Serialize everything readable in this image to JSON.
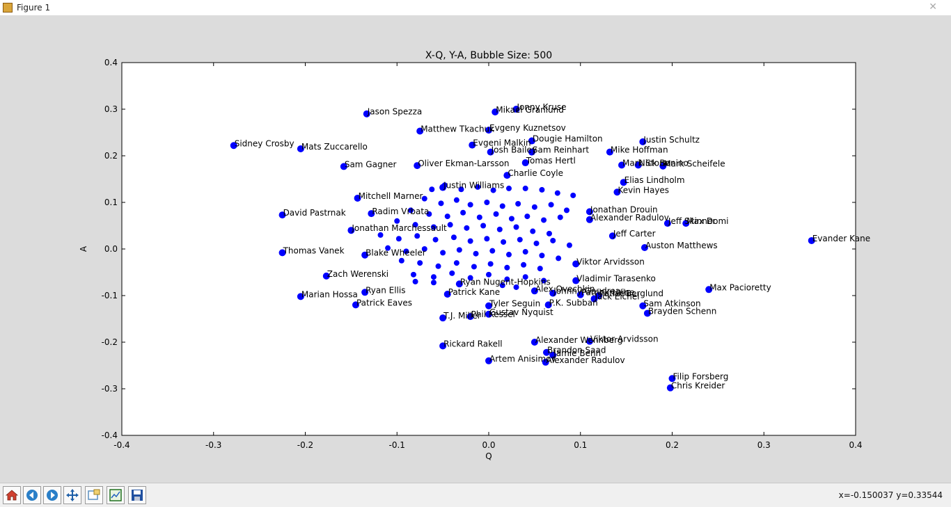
{
  "window": {
    "title": "Figure 1"
  },
  "chart_data": {
    "type": "scatter",
    "title": "X-Q, Y-A, Bubble Size: 500",
    "xlabel": "Q",
    "ylabel": "A",
    "xlim": [
      -0.4,
      0.4
    ],
    "ylim": [
      -0.4,
      0.4
    ],
    "xticks": [
      "-0.4",
      "-0.3",
      "-0.2",
      "-0.1",
      "0.0",
      "0.1",
      "0.2",
      "0.3",
      "0.4"
    ],
    "yticks": [
      "0.4",
      "0.3",
      "0.2",
      "0.1",
      "0.0",
      "-0.1",
      "-0.2",
      "-0.3",
      "-0.4"
    ],
    "marker_color": "#0000ff",
    "labeled_points": [
      {
        "name": "Jason Spezza",
        "x": -0.133,
        "y": 0.29
      },
      {
        "name": "Mikael Granlund",
        "x": 0.007,
        "y": 0.294
      },
      {
        "name": "Jonny Kruse",
        "x": 0.03,
        "y": 0.3
      },
      {
        "name": "Matthew Tkachuk",
        "x": -0.075,
        "y": 0.253
      },
      {
        "name": "Evgeny Kuznetsov",
        "x": 0.0,
        "y": 0.255
      },
      {
        "name": "Sidney Crosby",
        "x": -0.278,
        "y": 0.222
      },
      {
        "name": "Mats Zuccarello",
        "x": -0.205,
        "y": 0.215
      },
      {
        "name": "Dougie Hamilton",
        "x": 0.047,
        "y": 0.232
      },
      {
        "name": "Justin Schultz",
        "x": 0.168,
        "y": 0.23
      },
      {
        "name": "Evgeni Malkin",
        "x": -0.018,
        "y": 0.223
      },
      {
        "name": "Josh Bailey",
        "x": 0.002,
        "y": 0.208
      },
      {
        "name": "Sam Reinhart",
        "x": 0.047,
        "y": 0.208
      },
      {
        "name": "Mike Hoffman",
        "x": 0.132,
        "y": 0.208
      },
      {
        "name": "Sam Gagner",
        "x": -0.158,
        "y": 0.177
      },
      {
        "name": "Oliver Ekman-Larsson",
        "x": -0.078,
        "y": 0.179
      },
      {
        "name": "Mark Stone",
        "x": 0.145,
        "y": 0.18
      },
      {
        "name": "Nick Bonino",
        "x": 0.163,
        "y": 0.18
      },
      {
        "name": "Mark Scheifele",
        "x": 0.19,
        "y": 0.178
      },
      {
        "name": "Tomas Hertl",
        "x": 0.04,
        "y": 0.185
      },
      {
        "name": "Charlie Coyle",
        "x": 0.02,
        "y": 0.158
      },
      {
        "name": "Elias Lindholm",
        "x": 0.147,
        "y": 0.143
      },
      {
        "name": "Justin Williams",
        "x": -0.05,
        "y": 0.132
      },
      {
        "name": "Kevin Hayes",
        "x": 0.14,
        "y": 0.122
      },
      {
        "name": "Mitchell Marner",
        "x": -0.143,
        "y": 0.109
      },
      {
        "name": "David Pastrnak",
        "x": -0.225,
        "y": 0.073
      },
      {
        "name": "Radim Vrbata",
        "x": -0.128,
        "y": 0.076
      },
      {
        "name": "Jonathan Drouin",
        "x": 0.11,
        "y": 0.08
      },
      {
        "name": "Alexander Radulov",
        "x": 0.11,
        "y": 0.063
      },
      {
        "name": "Max Domi",
        "x": 0.215,
        "y": 0.055
      },
      {
        "name": "Jeff Skinner",
        "x": 0.195,
        "y": 0.055
      },
      {
        "name": "Jonathan Marchessault",
        "x": -0.15,
        "y": 0.04
      },
      {
        "name": "Jeff Carter",
        "x": 0.135,
        "y": 0.028
      },
      {
        "name": "Evander Kane",
        "x": 0.352,
        "y": 0.018
      },
      {
        "name": "Auston Matthews",
        "x": 0.17,
        "y": 0.003
      },
      {
        "name": "Thomas Vanek",
        "x": -0.225,
        "y": -0.008
      },
      {
        "name": "Blake Wheeler",
        "x": -0.135,
        "y": -0.013
      },
      {
        "name": "Zach Werenski",
        "x": -0.177,
        "y": -0.058
      },
      {
        "name": "Viktor Arvidsson",
        "x": 0.095,
        "y": -0.032
      },
      {
        "name": "Vladimir Tarasenko",
        "x": 0.095,
        "y": -0.068
      },
      {
        "name": "Max Pacioretty",
        "x": 0.24,
        "y": -0.087
      },
      {
        "name": "Ryan Nugent-Hopkins",
        "x": -0.032,
        "y": -0.075
      },
      {
        "name": "Marian Hossa",
        "x": -0.205,
        "y": -0.102
      },
      {
        "name": "Patrick Kane",
        "x": -0.045,
        "y": -0.097
      },
      {
        "name": "Alex Ovechkin",
        "x": 0.05,
        "y": -0.09
      },
      {
        "name": "Johnny Gaudreau",
        "x": 0.07,
        "y": -0.095
      },
      {
        "name": "Patrick Laine",
        "x": 0.1,
        "y": -0.098
      },
      {
        "name": "Patrik Berglund",
        "x": 0.12,
        "y": -0.1
      },
      {
        "name": "Ryan Ellis",
        "x": -0.135,
        "y": -0.093
      },
      {
        "name": "Jack Eichel",
        "x": 0.115,
        "y": -0.107
      },
      {
        "name": "P.K. Subban",
        "x": 0.065,
        "y": -0.12
      },
      {
        "name": "Sam Atkinson",
        "x": 0.168,
        "y": -0.122
      },
      {
        "name": "Tyler Seguin",
        "x": 0.0,
        "y": -0.122
      },
      {
        "name": "Patrick Eaves",
        "x": -0.145,
        "y": -0.12
      },
      {
        "name": "Brayden Schenn",
        "x": 0.173,
        "y": -0.138
      },
      {
        "name": "Phil Kessel",
        "x": -0.02,
        "y": -0.145
      },
      {
        "name": "T.J. Miller",
        "x": -0.05,
        "y": -0.148
      },
      {
        "name": "Gustav Nyquist",
        "x": 0.0,
        "y": -0.14
      },
      {
        "name": "Alexander Wennberg",
        "x": 0.05,
        "y": -0.2
      },
      {
        "name": "Viktor Arvidsson",
        "x": 0.11,
        "y": -0.198
      },
      {
        "name": "Rickard Rakell",
        "x": -0.05,
        "y": -0.208
      },
      {
        "name": "Brandon Saad",
        "x": 0.063,
        "y": -0.222
      },
      {
        "name": "Jamie Benn",
        "x": 0.07,
        "y": -0.228
      },
      {
        "name": "Artem Anisimov",
        "x": 0.0,
        "y": -0.24
      },
      {
        "name": "Alexander Radulov",
        "x": 0.062,
        "y": -0.243
      },
      {
        "name": "Filip Forsberg",
        "x": 0.2,
        "y": -0.278
      },
      {
        "name": "Chris Kreider",
        "x": 0.198,
        "y": -0.298
      }
    ],
    "cluster_points": [
      {
        "x": -0.062,
        "y": 0.128
      },
      {
        "x": -0.048,
        "y": 0.137
      },
      {
        "x": -0.03,
        "y": 0.128
      },
      {
        "x": -0.012,
        "y": 0.133
      },
      {
        "x": 0.005,
        "y": 0.126
      },
      {
        "x": 0.022,
        "y": 0.13
      },
      {
        "x": 0.04,
        "y": 0.13
      },
      {
        "x": 0.058,
        "y": 0.127
      },
      {
        "x": 0.075,
        "y": 0.12
      },
      {
        "x": 0.092,
        "y": 0.115
      },
      {
        "x": -0.07,
        "y": 0.108
      },
      {
        "x": -0.052,
        "y": 0.098
      },
      {
        "x": -0.035,
        "y": 0.105
      },
      {
        "x": -0.02,
        "y": 0.095
      },
      {
        "x": -0.002,
        "y": 0.1
      },
      {
        "x": 0.015,
        "y": 0.092
      },
      {
        "x": 0.032,
        "y": 0.097
      },
      {
        "x": 0.05,
        "y": 0.09
      },
      {
        "x": 0.068,
        "y": 0.095
      },
      {
        "x": 0.085,
        "y": 0.083
      },
      {
        "x": -0.085,
        "y": 0.083
      },
      {
        "x": -0.065,
        "y": 0.075
      },
      {
        "x": -0.045,
        "y": 0.07
      },
      {
        "x": -0.028,
        "y": 0.078
      },
      {
        "x": -0.01,
        "y": 0.068
      },
      {
        "x": 0.008,
        "y": 0.075
      },
      {
        "x": 0.025,
        "y": 0.065
      },
      {
        "x": 0.042,
        "y": 0.07
      },
      {
        "x": 0.06,
        "y": 0.062
      },
      {
        "x": 0.078,
        "y": 0.068
      },
      {
        "x": -0.1,
        "y": 0.06
      },
      {
        "x": -0.08,
        "y": 0.052
      },
      {
        "x": -0.06,
        "y": 0.047
      },
      {
        "x": -0.042,
        "y": 0.052
      },
      {
        "x": -0.024,
        "y": 0.045
      },
      {
        "x": -0.006,
        "y": 0.05
      },
      {
        "x": 0.012,
        "y": 0.042
      },
      {
        "x": 0.03,
        "y": 0.047
      },
      {
        "x": 0.048,
        "y": 0.038
      },
      {
        "x": 0.066,
        "y": 0.033
      },
      {
        "x": -0.118,
        "y": 0.03
      },
      {
        "x": -0.098,
        "y": 0.022
      },
      {
        "x": -0.078,
        "y": 0.028
      },
      {
        "x": -0.058,
        "y": 0.02
      },
      {
        "x": -0.038,
        "y": 0.025
      },
      {
        "x": -0.02,
        "y": 0.017
      },
      {
        "x": -0.002,
        "y": 0.022
      },
      {
        "x": 0.016,
        "y": 0.015
      },
      {
        "x": 0.034,
        "y": 0.02
      },
      {
        "x": 0.052,
        "y": 0.012
      },
      {
        "x": 0.07,
        "y": 0.018
      },
      {
        "x": 0.088,
        "y": 0.008
      },
      {
        "x": -0.11,
        "y": 0.002
      },
      {
        "x": -0.09,
        "y": -0.005
      },
      {
        "x": -0.07,
        "y": 0.0
      },
      {
        "x": -0.05,
        "y": -0.008
      },
      {
        "x": -0.032,
        "y": -0.002
      },
      {
        "x": -0.014,
        "y": -0.01
      },
      {
        "x": 0.004,
        "y": -0.004
      },
      {
        "x": 0.022,
        "y": -0.012
      },
      {
        "x": 0.04,
        "y": -0.006
      },
      {
        "x": 0.058,
        "y": -0.014
      },
      {
        "x": 0.076,
        "y": -0.02
      },
      {
        "x": -0.095,
        "y": -0.025
      },
      {
        "x": -0.075,
        "y": -0.03
      },
      {
        "x": -0.055,
        "y": -0.037
      },
      {
        "x": -0.035,
        "y": -0.03
      },
      {
        "x": -0.016,
        "y": -0.038
      },
      {
        "x": 0.002,
        "y": -0.032
      },
      {
        "x": 0.02,
        "y": -0.04
      },
      {
        "x": 0.038,
        "y": -0.034
      },
      {
        "x": 0.056,
        "y": -0.042
      },
      {
        "x": -0.082,
        "y": -0.055
      },
      {
        "x": -0.06,
        "y": -0.06
      },
      {
        "x": -0.04,
        "y": -0.052
      },
      {
        "x": -0.02,
        "y": -0.062
      },
      {
        "x": 0.0,
        "y": -0.055
      },
      {
        "x": 0.02,
        "y": -0.065
      },
      {
        "x": 0.04,
        "y": -0.06
      },
      {
        "x": 0.06,
        "y": -0.068
      },
      {
        "x": -0.08,
        "y": -0.07
      },
      {
        "x": -0.06,
        "y": -0.072
      },
      {
        "x": 0.015,
        "y": -0.078
      },
      {
        "x": 0.03,
        "y": -0.082
      }
    ]
  },
  "toolbar": {
    "buttons": [
      {
        "name": "home-button",
        "icon": "home-icon"
      },
      {
        "name": "back-button",
        "icon": "arrow-left-icon"
      },
      {
        "name": "forward-button",
        "icon": "arrow-right-icon"
      },
      {
        "name": "pan-button",
        "icon": "move-icon"
      },
      {
        "name": "zoom-button",
        "icon": "zoom-rect-icon"
      },
      {
        "name": "subplots-button",
        "icon": "subplots-icon"
      },
      {
        "name": "save-button",
        "icon": "save-icon"
      }
    ],
    "coords": "x=-0.150037   y=0.33544"
  }
}
